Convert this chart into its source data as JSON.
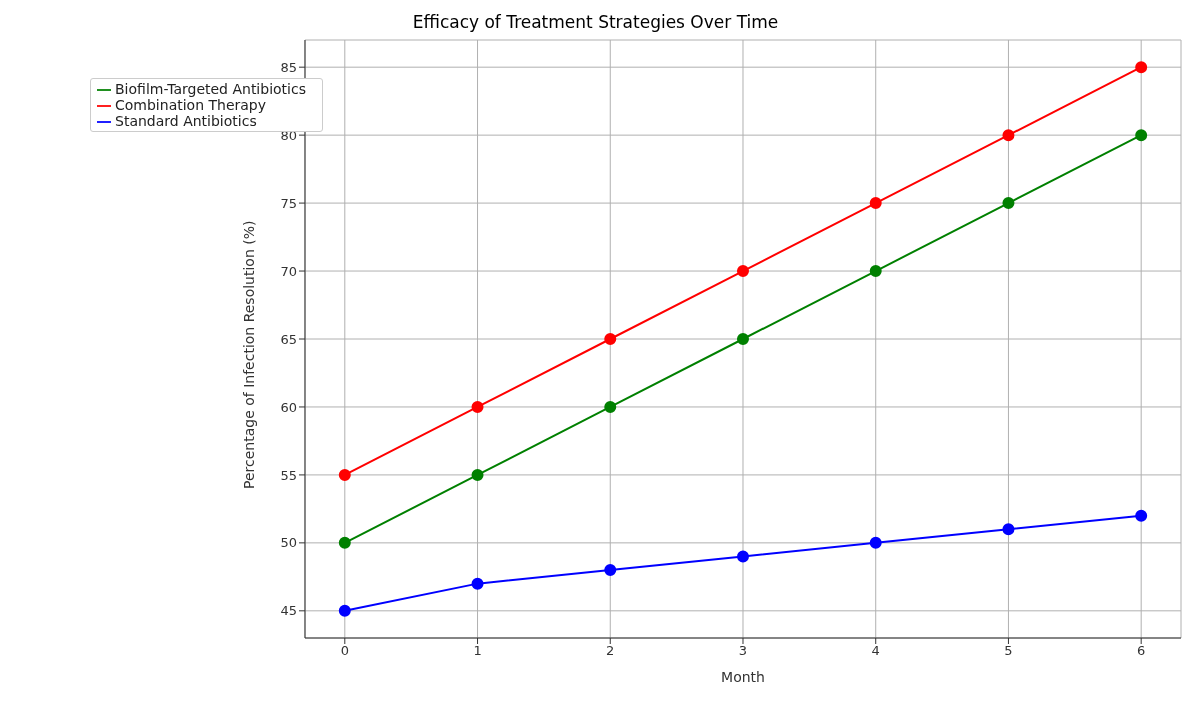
{
  "chart_data": {
    "type": "line",
    "title": "Efficacy of Treatment Strategies Over Time",
    "xlabel": "Month",
    "ylabel": "Percentage of Infection Resolution (%)",
    "x": [
      0,
      1,
      2,
      3,
      4,
      5,
      6
    ],
    "series": [
      {
        "name": "Standard Antibiotics",
        "color": "#0000ff",
        "values": [
          45,
          47,
          48,
          49,
          50,
          51,
          52
        ]
      },
      {
        "name": "Biofilm-Targeted Antibiotics",
        "color": "#008000",
        "values": [
          50,
          55,
          60,
          65,
          70,
          75,
          80
        ]
      },
      {
        "name": "Combination Therapy",
        "color": "#ff0000",
        "values": [
          55,
          60,
          65,
          70,
          75,
          80,
          85
        ]
      }
    ],
    "xlim": [
      -0.3,
      6.3
    ],
    "xticks": [
      0,
      1,
      2,
      3,
      4,
      5,
      6
    ],
    "ylim": [
      43,
      87
    ],
    "yticks": [
      45,
      50,
      55,
      60,
      65,
      70,
      75,
      80,
      85
    ],
    "grid": true,
    "legend": "top left",
    "marker": "circle",
    "line_style": "solid"
  }
}
